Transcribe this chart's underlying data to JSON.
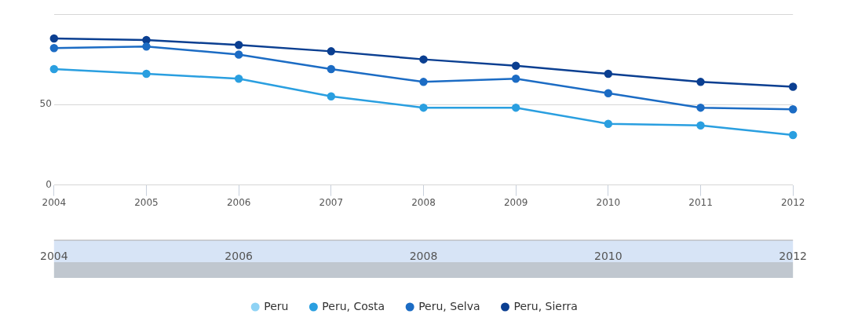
{
  "chart_data": {
    "type": "line",
    "categories": [
      "2004",
      "2005",
      "2006",
      "2007",
      "2008",
      "2009",
      "2010",
      "2011",
      "2012"
    ],
    "series": [
      {
        "name": "Peru",
        "color": "#8fd3f5",
        "values": [
          null,
          null,
          null,
          null,
          null,
          null,
          null,
          null,
          null
        ]
      },
      {
        "name": "Peru, Costa",
        "color": "#2a9fe0",
        "values": [
          72,
          69,
          66,
          55,
          48,
          48,
          38,
          37,
          31
        ]
      },
      {
        "name": "Peru, Selva",
        "color": "#1c6cc4",
        "values": [
          85,
          86,
          81,
          72,
          64,
          66,
          57,
          48,
          47
        ]
      },
      {
        "name": "Peru, Sierra",
        "color": "#0b3f91",
        "values": [
          91,
          90,
          87,
          83,
          78,
          74,
          69,
          64,
          61
        ]
      }
    ],
    "ylim": [
      0,
      106
    ],
    "yticks": [
      0,
      50,
      {
        "value": 106,
        "label": null
      }
    ],
    "x2lim": [
      2004,
      2012
    ],
    "x2ticks": [
      2004,
      2006,
      2008,
      2010,
      2012
    ],
    "grid": "y",
    "legend": "bottom",
    "marker": "circle",
    "line_style": "solid"
  }
}
